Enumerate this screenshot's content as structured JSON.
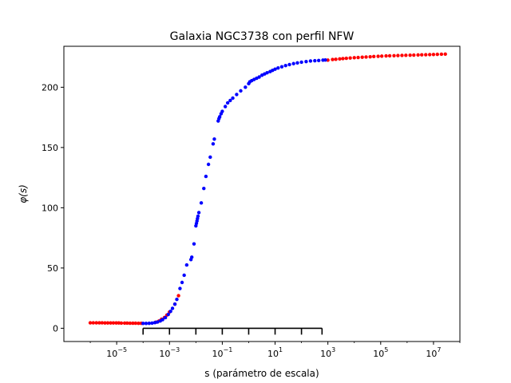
{
  "chart_data": {
    "type": "scatter",
    "title": "Galaxia NGC3738 con perfil NFW",
    "xlabel": "s (parámetro de escala)",
    "ylabel": "φ(s)",
    "x_scale": "log",
    "xlim": [
      1e-07,
      100000000.0
    ],
    "ylim": [
      -11,
      234
    ],
    "x_ticks": [
      {
        "value": 1e-05,
        "base": "10",
        "exp": "−5"
      },
      {
        "value": 0.001,
        "base": "10",
        "exp": "−3"
      },
      {
        "value": 0.1,
        "base": "10",
        "exp": "−1"
      },
      {
        "value": 10.0,
        "base": "10",
        "exp": "1"
      },
      {
        "value": 1000.0,
        "base": "10",
        "exp": "3"
      },
      {
        "value": 100000.0,
        "base": "10",
        "exp": "5"
      },
      {
        "value": 10000000.0,
        "base": "10",
        "exp": "7"
      }
    ],
    "y_ticks": [
      0,
      50,
      100,
      150,
      200
    ],
    "grid": false,
    "legend": "none",
    "series": [
      {
        "color": "#ff0000",
        "points": [
          [
            1e-06,
            4.5
          ],
          [
            1.3e-06,
            4.5
          ],
          [
            1.7e-06,
            4.5
          ],
          [
            2.2e-06,
            4.5
          ],
          [
            2.8e-06,
            4.5
          ],
          [
            3.6e-06,
            4.4
          ],
          [
            4.6e-06,
            4.4
          ],
          [
            5.9e-06,
            4.4
          ],
          [
            7.5e-06,
            4.4
          ],
          [
            9.6e-06,
            4.4
          ],
          [
            1.2e-05,
            4.4
          ],
          [
            1.5e-05,
            4.3
          ],
          [
            2e-05,
            4.3
          ],
          [
            2.5e-05,
            4.3
          ],
          [
            3.2e-05,
            4.2
          ],
          [
            4.1e-05,
            4.2
          ],
          [
            5.2e-05,
            4.2
          ],
          [
            6.7e-05,
            4.1
          ],
          [
            8.5e-05,
            4.1
          ],
          [
            0.0003,
            5.0
          ],
          [
            0.0004,
            6.0
          ],
          [
            0.0005,
            7.5
          ],
          [
            0.00065,
            9.0
          ],
          [
            0.0008,
            11.0
          ],
          [
            0.001,
            13.5
          ],
          [
            0.0016,
            20.0
          ],
          [
            0.0022,
            27.0
          ],
          [
            1000.0,
            222.5
          ],
          [
            1500.0,
            223.0
          ],
          [
            2000.0,
            223.2
          ],
          [
            2800.0,
            223.5
          ],
          [
            3700.0,
            223.8
          ],
          [
            5000.0,
            224.0
          ],
          [
            7000.0,
            224.3
          ],
          [
            10000.0,
            224.5
          ],
          [
            14000.0,
            224.7
          ],
          [
            20000.0,
            224.9
          ],
          [
            28000.0,
            225.1
          ],
          [
            40000.0,
            225.3
          ],
          [
            55000.0,
            225.5
          ],
          [
            80000.0,
            225.7
          ],
          [
            110000.0,
            225.8
          ],
          [
            160000.0,
            226.0
          ],
          [
            220000.0,
            226.1
          ],
          [
            320000.0,
            226.2
          ],
          [
            450000.0,
            226.3
          ],
          [
            640000.0,
            226.4
          ],
          [
            900000.0,
            226.5
          ],
          [
            1300000.0,
            226.6
          ],
          [
            1800000.0,
            226.7
          ],
          [
            2600000.0,
            226.8
          ],
          [
            3600000.0,
            226.9
          ],
          [
            5100000.0,
            227.0
          ],
          [
            7200000.0,
            227.1
          ],
          [
            10000000.0,
            227.2
          ],
          [
            14000000.0,
            227.3
          ],
          [
            20000000.0,
            227.4
          ],
          [
            28000000.0,
            227.5
          ]
        ]
      },
      {
        "color": "#0000ff",
        "points": [
          [
            0.0001,
            4.0
          ],
          [
            0.00013,
            4.0
          ],
          [
            0.00017,
            4.1
          ],
          [
            0.00022,
            4.3
          ],
          [
            0.00028,
            4.7
          ],
          [
            0.00035,
            5.2
          ],
          [
            0.00045,
            6.1
          ],
          [
            0.00055,
            7.2
          ],
          [
            0.0007,
            8.8
          ],
          [
            0.0009,
            11.5
          ],
          [
            0.0011,
            14.0
          ],
          [
            0.0013,
            16.5
          ],
          [
            0.0016,
            20.0
          ],
          [
            0.0019,
            24.0
          ],
          [
            0.0025,
            33.0
          ],
          [
            0.003,
            38.0
          ],
          [
            0.0036,
            44.0
          ],
          [
            0.0045,
            52.5
          ],
          [
            0.0065,
            57.0
          ],
          [
            0.007,
            59.0
          ],
          [
            0.0085,
            70.0
          ],
          [
            0.01,
            85.0
          ],
          [
            0.0105,
            87.0
          ],
          [
            0.011,
            89.0
          ],
          [
            0.0115,
            91.0
          ],
          [
            0.012,
            93.0
          ],
          [
            0.013,
            96.0
          ],
          [
            0.016,
            104.0
          ],
          [
            0.02,
            116.0
          ],
          [
            0.024,
            126.0
          ],
          [
            0.03,
            136.0
          ],
          [
            0.035,
            142.0
          ],
          [
            0.045,
            153.0
          ],
          [
            0.05,
            157.0
          ],
          [
            0.07,
            172.0
          ],
          [
            0.075,
            174.0
          ],
          [
            0.08,
            175.5
          ],
          [
            0.09,
            178.0
          ],
          [
            0.1,
            180.0
          ],
          [
            0.13,
            184.0
          ],
          [
            0.16,
            187.0
          ],
          [
            0.2,
            189.0
          ],
          [
            0.25,
            191.0
          ],
          [
            0.35,
            194.0
          ],
          [
            0.5,
            197.0
          ],
          [
            0.75,
            200.0
          ],
          [
            1.0,
            203.0
          ],
          [
            1.1,
            204.5
          ],
          [
            1.3,
            205.5
          ],
          [
            1.6,
            206.5
          ],
          [
            2.0,
            207.5
          ],
          [
            2.5,
            208.5
          ],
          [
            3.2,
            210.0
          ],
          [
            4.0,
            211.0
          ],
          [
            5.0,
            212.0
          ],
          [
            6.5,
            213.0
          ],
          [
            8.0,
            214.0
          ],
          [
            10.0,
            215.0
          ],
          [
            13.0,
            216.0
          ],
          [
            18.0,
            217.0
          ],
          [
            25.0,
            218.0
          ],
          [
            35.0,
            218.8
          ],
          [
            50.0,
            219.6
          ],
          [
            70.0,
            220.2
          ],
          [
            100.0,
            220.8
          ],
          [
            150.0,
            221.3
          ],
          [
            220.0,
            221.8
          ],
          [
            320.0,
            222.0
          ],
          [
            450.0,
            222.2
          ],
          [
            650.0,
            222.5
          ],
          [
            800.0,
            222.6
          ]
        ]
      }
    ],
    "x_axis_bracket": {
      "from": 0.0001,
      "to": 600.0,
      "ticks": [
        0.0001,
        0.001,
        0.01,
        0.1,
        1.0,
        10.0,
        100.0,
        600.0
      ]
    }
  }
}
